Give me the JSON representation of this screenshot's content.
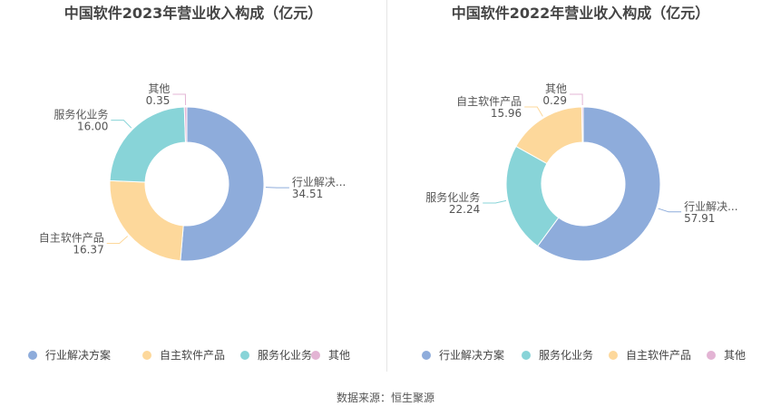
{
  "source_note": "数据来源：恒生聚源",
  "chart_data": [
    {
      "type": "pie",
      "title": "中国软件2023年营业收入构成（亿元）",
      "donut": true,
      "legend_position": "bottom",
      "slices": [
        {
          "name": "行业解决方案",
          "short_label": "行业解决...",
          "value": 34.51,
          "value_label": "34.51",
          "color": "#8eacdb"
        },
        {
          "name": "自主软件产品",
          "short_label": "自主软件产品",
          "value": 16.37,
          "value_label": "16.37",
          "color": "#fdd89b"
        },
        {
          "name": "服务化业务",
          "short_label": "服务化业务",
          "value": 16.0,
          "value_label": "16.00",
          "color": "#88d4d8"
        },
        {
          "name": "其他",
          "short_label": "其他",
          "value": 0.35,
          "value_label": "0.35",
          "color": "#e3b4d4"
        }
      ]
    },
    {
      "type": "pie",
      "title": "中国软件2022年营业收入构成（亿元）",
      "donut": true,
      "legend_position": "bottom",
      "slices": [
        {
          "name": "行业解决方案",
          "short_label": "行业解决...",
          "value": 57.91,
          "value_label": "57.91",
          "color": "#8eacdb"
        },
        {
          "name": "服务化业务",
          "short_label": "服务化业务",
          "value": 22.24,
          "value_label": "22.24",
          "color": "#88d4d8"
        },
        {
          "name": "自主软件产品",
          "short_label": "自主软件产品",
          "value": 15.96,
          "value_label": "15.96",
          "color": "#fdd89b"
        },
        {
          "name": "其他",
          "short_label": "其他",
          "value": 0.29,
          "value_label": "0.29",
          "color": "#e3b4d4"
        }
      ]
    }
  ]
}
